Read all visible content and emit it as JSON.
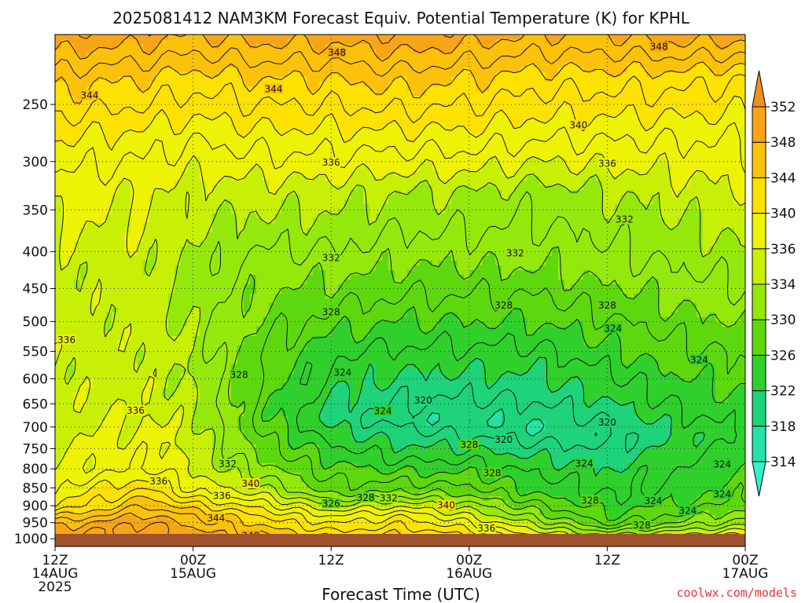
{
  "chart_data": {
    "type": "heatmap",
    "title": "2025081412 NAM3KM Forecast Equiv. Potential Temperature (K) for KPHL",
    "xlabel": "Forecast Time (UTC)",
    "ylabel": "",
    "credit": "coolwx.com/models",
    "x_ticks": [
      {
        "hour": 0,
        "lines": [
          "12Z",
          "14AUG",
          "2025"
        ]
      },
      {
        "hour": 12,
        "lines": [
          "00Z",
          "15AUG"
        ]
      },
      {
        "hour": 24,
        "lines": [
          "12Z"
        ]
      },
      {
        "hour": 36,
        "lines": [
          "00Z",
          "16AUG"
        ]
      },
      {
        "hour": 48,
        "lines": [
          "12Z"
        ]
      },
      {
        "hour": 60,
        "lines": [
          "00Z",
          "17AUG"
        ]
      }
    ],
    "xlim": [
      0,
      60
    ],
    "y_ticks": [
      250,
      300,
      350,
      400,
      450,
      500,
      550,
      600,
      650,
      700,
      750,
      800,
      850,
      900,
      950,
      1000
    ],
    "ylim": [
      200,
      1025
    ],
    "y_scale": "log",
    "grid": true,
    "colorbar": {
      "levels": [
        314,
        318,
        322,
        326,
        330,
        334,
        336,
        340,
        344,
        348,
        352
      ],
      "colors": [
        "#35f0cc",
        "#25e2a6",
        "#1ed37a",
        "#2fd02c",
        "#5ed80e",
        "#95e80b",
        "#c8f006",
        "#eef205",
        "#fde100",
        "#fcc10a",
        "#f7a517",
        "#f19020"
      ]
    },
    "contour_labels": [
      {
        "t": 24.5,
        "p": 212,
        "text": "348"
      },
      {
        "t": 52.5,
        "p": 208,
        "text": "348"
      },
      {
        "t": 3,
        "p": 243,
        "text": "344"
      },
      {
        "t": 19,
        "p": 238,
        "text": "344"
      },
      {
        "t": 45.5,
        "p": 267,
        "text": "340"
      },
      {
        "t": 24,
        "p": 301,
        "text": "336"
      },
      {
        "t": 48,
        "p": 302,
        "text": "336"
      },
      {
        "t": 49.5,
        "p": 361,
        "text": "332"
      },
      {
        "t": 24,
        "p": 408,
        "text": "332"
      },
      {
        "t": 40,
        "p": 402,
        "text": "332"
      },
      {
        "t": 24,
        "p": 485,
        "text": "328"
      },
      {
        "t": 39,
        "p": 475,
        "text": "328"
      },
      {
        "t": 48,
        "p": 475,
        "text": "328"
      },
      {
        "t": 48.5,
        "p": 511,
        "text": "324"
      },
      {
        "t": 25,
        "p": 588,
        "text": "324"
      },
      {
        "t": 56,
        "p": 565,
        "text": "324"
      },
      {
        "t": 1,
        "p": 530,
        "text": "336"
      },
      {
        "t": 16,
        "p": 593,
        "text": "328"
      },
      {
        "t": 7,
        "p": 664,
        "text": "336"
      },
      {
        "t": 28.5,
        "p": 665,
        "text": "324"
      },
      {
        "t": 32,
        "p": 643,
        "text": "320"
      },
      {
        "t": 48,
        "p": 690,
        "text": "320"
      },
      {
        "t": 39,
        "p": 729,
        "text": "320"
      },
      {
        "t": 36,
        "p": 741,
        "text": "328"
      },
      {
        "t": 46,
        "p": 787,
        "text": "324"
      },
      {
        "t": 58,
        "p": 789,
        "text": "324"
      },
      {
        "t": 15,
        "p": 788,
        "text": "332"
      },
      {
        "t": 38,
        "p": 811,
        "text": "328"
      },
      {
        "t": 9,
        "p": 832,
        "text": "336"
      },
      {
        "t": 17,
        "p": 839,
        "text": "340"
      },
      {
        "t": 14.5,
        "p": 872,
        "text": "336"
      },
      {
        "t": 27,
        "p": 877,
        "text": "328"
      },
      {
        "t": 29,
        "p": 879,
        "text": "332"
      },
      {
        "t": 24,
        "p": 894,
        "text": "326"
      },
      {
        "t": 34,
        "p": 899,
        "text": "340"
      },
      {
        "t": 46.5,
        "p": 885,
        "text": "328"
      },
      {
        "t": 52,
        "p": 886,
        "text": "324"
      },
      {
        "t": 58,
        "p": 868,
        "text": "324"
      },
      {
        "t": 55,
        "p": 914,
        "text": "324"
      },
      {
        "t": 14,
        "p": 937,
        "text": "344"
      },
      {
        "t": 51,
        "p": 958,
        "text": "328"
      },
      {
        "t": 37.5,
        "p": 968,
        "text": "336"
      },
      {
        "t": 17,
        "p": 991,
        "text": "348"
      }
    ],
    "field_profiles": [
      {
        "t": 0,
        "p": [
          200,
          230,
          280,
          330,
          420,
          600,
          800,
          900,
          960,
          1000
        ],
        "v": [
          350,
          345,
          340,
          337,
          335,
          335,
          336,
          340,
          348,
          350
        ]
      },
      {
        "t": 8,
        "p": [
          200,
          230,
          280,
          330,
          420,
          600,
          800,
          900,
          960,
          1000
        ],
        "v": [
          349,
          344,
          339,
          336,
          335,
          335,
          338,
          346,
          351,
          351
        ]
      },
      {
        "t": 12,
        "p": [
          200,
          230,
          280,
          330,
          420,
          600,
          800,
          860,
          930,
          1000
        ],
        "v": [
          348,
          343,
          338,
          335,
          333,
          334,
          336,
          338,
          346,
          350
        ]
      },
      {
        "t": 18,
        "p": [
          200,
          230,
          280,
          330,
          420,
          560,
          680,
          780,
          850,
          930,
          1000
        ],
        "v": [
          349,
          344,
          339,
          335,
          331,
          328,
          327,
          330,
          334,
          342,
          347
        ]
      },
      {
        "t": 24,
        "p": [
          200,
          230,
          280,
          330,
          420,
          560,
          680,
          780,
          860,
          930,
          1000
        ],
        "v": [
          349,
          344,
          339,
          335,
          331,
          324,
          321,
          326,
          329,
          338,
          344
        ]
      },
      {
        "t": 30,
        "p": [
          200,
          230,
          280,
          330,
          420,
          560,
          680,
          780,
          860,
          930,
          1000
        ],
        "v": [
          350,
          345,
          339,
          334,
          330,
          323,
          319,
          324,
          330,
          340,
          345
        ]
      },
      {
        "t": 36,
        "p": [
          200,
          230,
          280,
          330,
          420,
          560,
          690,
          780,
          860,
          930,
          1000
        ],
        "v": [
          349,
          344,
          339,
          334,
          330,
          323,
          318,
          324,
          329,
          336,
          343
        ]
      },
      {
        "t": 42,
        "p": [
          200,
          230,
          280,
          330,
          420,
          560,
          700,
          790,
          870,
          930,
          1000
        ],
        "v": [
          348,
          343,
          338,
          333,
          330,
          323,
          318,
          323,
          326,
          331,
          339
        ]
      },
      {
        "t": 48,
        "p": [
          200,
          230,
          280,
          330,
          420,
          560,
          720,
          800,
          880,
          950,
          1000
        ],
        "v": [
          348,
          343,
          338,
          334,
          331,
          325,
          319,
          322,
          324,
          327,
          336
        ]
      },
      {
        "t": 54,
        "p": [
          200,
          230,
          280,
          330,
          420,
          560,
          720,
          800,
          880,
          950,
          1000
        ],
        "v": [
          349,
          343,
          338,
          335,
          332,
          327,
          322,
          324,
          325,
          330,
          338
        ]
      },
      {
        "t": 60,
        "p": [
          200,
          230,
          280,
          330,
          420,
          560,
          720,
          800,
          880,
          950,
          1000
        ],
        "v": [
          349,
          342,
          338,
          336,
          333,
          328,
          324,
          326,
          328,
          333,
          340
        ]
      }
    ]
  }
}
